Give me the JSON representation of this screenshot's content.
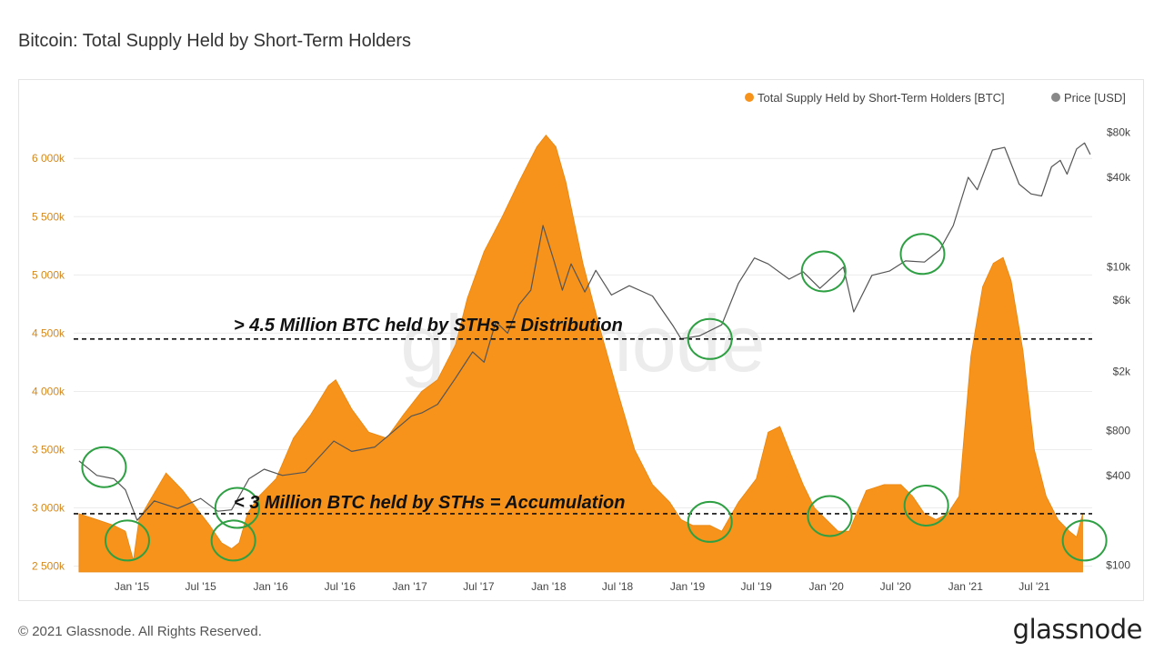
{
  "page": {
    "title": "Bitcoin: Total Supply Held by Short-Term Holders",
    "footer_copyright": "© 2021 Glassnode. All Rights Reserved.",
    "footer_logo": "glassnode",
    "watermark": "glassnode"
  },
  "colors": {
    "supply": "#f7931a",
    "price": "#888888",
    "annotation_circle": "#2ea043",
    "left_axis_text": "#d4881d"
  },
  "chart_data": {
    "type": "area",
    "x_ticks": [
      "Jan '15",
      "Jul '15",
      "Jan '16",
      "Jul '16",
      "Jan '17",
      "Jul '17",
      "Jan '18",
      "Jul '18",
      "Jan '19",
      "Jul '19",
      "Jan '20",
      "Jul '20",
      "Jan '21",
      "Jul '21"
    ],
    "left_axis": {
      "ticks": [
        "2 500k",
        "3 000k",
        "3 500k",
        "4 000k",
        "4 500k",
        "5 000k",
        "5 500k",
        "6 000k"
      ],
      "tick_values": [
        2500000,
        3000000,
        3500000,
        4000000,
        4500000,
        5000000,
        5500000,
        6000000
      ],
      "range": [
        2450000,
        6400000
      ]
    },
    "right_axis": {
      "scale": "log",
      "ticks": [
        "$100",
        "$400",
        "$800",
        "$2k",
        "$6k",
        "$10k",
        "$40k",
        "$80k"
      ],
      "tick_values": [
        100,
        400,
        800,
        2000,
        6000,
        10000,
        40000,
        80000
      ]
    },
    "legend": {
      "placement": "top-right",
      "items": [
        "Total Supply Held by Short-Term Holders [BTC]",
        "Price [USD]"
      ]
    },
    "grid": true,
    "annotations": {
      "distribution": {
        "text": "> 4.5 Million BTC held by STHs = Distribution",
        "y": 4450000
      },
      "accumulation": {
        "text": "< 3 Million BTC held by STHs = Accumulation",
        "y": 2950000
      }
    },
    "series": [
      {
        "name": "Total Supply Held by Short-Term Holders [BTC]",
        "axis": "left",
        "x": [
          "2014-08-15",
          "2014-10-01",
          "2014-11-15",
          "2014-12-15",
          "2015-01-05",
          "2015-01-20",
          "2015-02-15",
          "2015-04-01",
          "2015-05-15",
          "2015-07-01",
          "2015-07-25",
          "2015-08-25",
          "2015-09-20",
          "2015-10-10",
          "2015-11-01",
          "2015-12-01",
          "2016-01-15",
          "2016-03-01",
          "2016-04-15",
          "2016-06-01",
          "2016-06-20",
          "2016-08-01",
          "2016-09-15",
          "2016-11-01",
          "2016-12-15",
          "2017-02-01",
          "2017-03-15",
          "2017-05-01",
          "2017-06-01",
          "2017-07-15",
          "2017-09-01",
          "2017-10-15",
          "2017-12-01",
          "2017-12-25",
          "2018-01-20",
          "2018-02-15",
          "2018-04-01",
          "2018-05-15",
          "2018-07-01",
          "2018-08-15",
          "2018-10-01",
          "2018-11-15",
          "2018-12-15",
          "2019-01-15",
          "2019-03-01",
          "2019-04-01",
          "2019-05-15",
          "2019-07-01",
          "2019-08-01",
          "2019-09-01",
          "2019-10-01",
          "2019-11-01",
          "2019-12-01",
          "2020-01-01",
          "2020-02-01",
          "2020-03-01",
          "2020-03-20",
          "2020-04-15",
          "2020-06-01",
          "2020-07-15",
          "2020-08-15",
          "2020-09-15",
          "2020-10-15",
          "2020-11-15",
          "2020-12-15",
          "2021-01-15",
          "2021-02-15",
          "2021-03-15",
          "2021-04-10",
          "2021-05-01",
          "2021-06-01",
          "2021-07-01",
          "2021-08-01",
          "2021-09-01",
          "2021-10-01",
          "2021-10-20",
          "2021-11-05"
        ],
        "values": [
          2950000,
          2900000,
          2850000,
          2800000,
          2550000,
          2900000,
          3050000,
          3300000,
          3150000,
          2950000,
          2850000,
          2700000,
          2650000,
          2700000,
          2950000,
          3100000,
          3250000,
          3600000,
          3800000,
          4050000,
          4100000,
          3850000,
          3650000,
          3600000,
          3800000,
          4000000,
          4100000,
          4400000,
          4800000,
          5200000,
          5500000,
          5800000,
          6100000,
          6200000,
          6100000,
          5800000,
          5100000,
          4550000,
          4000000,
          3500000,
          3200000,
          3050000,
          2900000,
          2850000,
          2850000,
          2800000,
          3050000,
          3250000,
          3650000,
          3700000,
          3450000,
          3200000,
          3000000,
          2900000,
          2800000,
          2800000,
          2950000,
          3150000,
          3200000,
          3200000,
          3100000,
          2950000,
          2900000,
          2950000,
          3100000,
          4300000,
          4900000,
          5100000,
          5150000,
          4950000,
          4350000,
          3500000,
          3100000,
          2900000,
          2800000,
          2750000,
          2950000
        ]
      },
      {
        "name": "Price [USD]",
        "axis": "right",
        "x": [
          "2014-08-15",
          "2014-10-01",
          "2014-11-15",
          "2014-12-15",
          "2015-01-15",
          "2015-03-01",
          "2015-05-01",
          "2015-07-01",
          "2015-08-15",
          "2015-09-20",
          "2015-11-05",
          "2015-12-15",
          "2016-02-01",
          "2016-04-01",
          "2016-06-15",
          "2016-08-01",
          "2016-10-01",
          "2016-12-15",
          "2017-01-05",
          "2017-02-01",
          "2017-03-15",
          "2017-05-01",
          "2017-06-15",
          "2017-07-15",
          "2017-08-15",
          "2017-09-15",
          "2017-10-15",
          "2017-11-15",
          "2017-12-17",
          "2018-01-15",
          "2018-02-06",
          "2018-03-01",
          "2018-04-06",
          "2018-05-05",
          "2018-06-15",
          "2018-08-01",
          "2018-10-01",
          "2018-11-25",
          "2018-12-15",
          "2019-02-01",
          "2019-04-01",
          "2019-05-15",
          "2019-06-26",
          "2019-08-01",
          "2019-09-25",
          "2019-11-01",
          "2019-12-15",
          "2020-02-15",
          "2020-03-13",
          "2020-04-30",
          "2020-06-15",
          "2020-07-27",
          "2020-09-15",
          "2020-10-25",
          "2020-11-30",
          "2021-01-08",
          "2021-02-01",
          "2021-03-13",
          "2021-04-14",
          "2021-05-22",
          "2021-06-22",
          "2021-07-20",
          "2021-08-15",
          "2021-09-07",
          "2021-09-25",
          "2021-10-20",
          "2021-11-10",
          "2021-11-25"
        ],
        "values": [
          500,
          400,
          380,
          320,
          200,
          270,
          240,
          280,
          230,
          235,
          380,
          440,
          400,
          420,
          680,
          580,
          620,
          900,
          1000,
          1050,
          1200,
          1800,
          2700,
          2300,
          4300,
          3600,
          5600,
          7000,
          19000,
          11000,
          7000,
          10500,
          6800,
          9500,
          6500,
          7500,
          6400,
          4000,
          3300,
          3450,
          4100,
          7800,
          11500,
          10500,
          8300,
          9300,
          7200,
          10000,
          5000,
          8800,
          9400,
          11000,
          10800,
          13000,
          19000,
          40000,
          33000,
          61000,
          63500,
          36000,
          31000,
          30000,
          47000,
          52000,
          42000,
          62000,
          68000,
          57000
        ]
      }
    ],
    "highlight_circles": [
      {
        "x": "2014-10-20",
        "value": 3350000,
        "axis": "left"
      },
      {
        "x": "2014-12-20",
        "value": 2720000,
        "axis": "left"
      },
      {
        "x": "2015-10-05",
        "value": 3000000,
        "axis": "left"
      },
      {
        "x": "2015-09-25",
        "value": 2720000,
        "axis": "left"
      },
      {
        "x": "2019-03-01",
        "value": 4450000,
        "axis": "left"
      },
      {
        "x": "2019-03-01",
        "value": 2880000,
        "axis": "left"
      },
      {
        "x": "2019-12-25",
        "value": 5030000,
        "axis": "left"
      },
      {
        "x": "2020-01-10",
        "value": 2930000,
        "axis": "left"
      },
      {
        "x": "2020-09-10",
        "value": 5180000,
        "axis": "left"
      },
      {
        "x": "2020-09-20",
        "value": 3020000,
        "axis": "left"
      },
      {
        "x": "2021-11-10",
        "value": 2720000,
        "axis": "left"
      }
    ]
  }
}
